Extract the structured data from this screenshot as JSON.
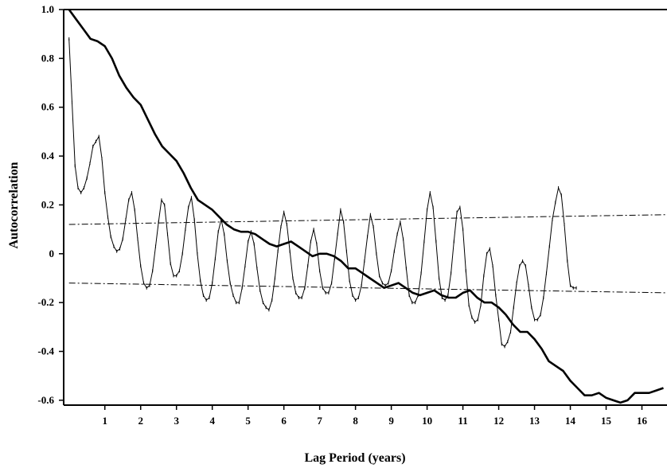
{
  "chart_data": {
    "type": "line",
    "title": "",
    "xlabel": "Lag Period (years)",
    "ylabel": "Autocorrelation",
    "xlim": [
      -0.15,
      16.7
    ],
    "ylim": [
      -0.62,
      1.0
    ],
    "grid": false,
    "x_ticks": [
      1,
      2,
      3,
      4,
      5,
      6,
      7,
      8,
      9,
      10,
      11,
      12,
      13,
      14,
      15,
      16
    ],
    "y_ticks": [
      {
        "value": 1.0,
        "label": "1.0"
      },
      {
        "value": 0.8,
        "label": "0.8"
      },
      {
        "value": 0.6,
        "label": "0.6"
      },
      {
        "value": 0.4,
        "label": "0.4"
      },
      {
        "value": 0.2,
        "label": "0.2"
      },
      {
        "value": 0.0,
        "label": "0"
      },
      {
        "value": -0.2,
        "label": "-0.2"
      },
      {
        "value": -0.4,
        "label": "-0.4"
      },
      {
        "value": -0.6,
        "label": "-0.6"
      }
    ],
    "series": [
      {
        "style": "thin-with-markers",
        "points": [
          [
            0.0,
            0.88
          ],
          [
            0.083,
            0.62
          ],
          [
            0.167,
            0.36
          ],
          [
            0.25,
            0.27
          ],
          [
            0.333,
            0.25
          ],
          [
            0.417,
            0.27
          ],
          [
            0.5,
            0.31
          ],
          [
            0.583,
            0.37
          ],
          [
            0.667,
            0.44
          ],
          [
            0.75,
            0.46
          ],
          [
            0.833,
            0.48
          ],
          [
            0.917,
            0.39
          ],
          [
            1.0,
            0.25
          ],
          [
            1.083,
            0.15
          ],
          [
            1.167,
            0.07
          ],
          [
            1.25,
            0.03
          ],
          [
            1.333,
            0.01
          ],
          [
            1.417,
            0.02
          ],
          [
            1.5,
            0.06
          ],
          [
            1.583,
            0.14
          ],
          [
            1.667,
            0.22
          ],
          [
            1.75,
            0.25
          ],
          [
            1.833,
            0.18
          ],
          [
            1.917,
            0.06
          ],
          [
            2.0,
            -0.05
          ],
          [
            2.083,
            -0.12
          ],
          [
            2.167,
            -0.14
          ],
          [
            2.25,
            -0.13
          ],
          [
            2.333,
            -0.07
          ],
          [
            2.417,
            0.03
          ],
          [
            2.5,
            0.13
          ],
          [
            2.583,
            0.22
          ],
          [
            2.667,
            0.2
          ],
          [
            2.75,
            0.08
          ],
          [
            2.833,
            -0.04
          ],
          [
            2.917,
            -0.09
          ],
          [
            3.0,
            -0.09
          ],
          [
            3.083,
            -0.07
          ],
          [
            3.167,
            0.0
          ],
          [
            3.25,
            0.1
          ],
          [
            3.333,
            0.19
          ],
          [
            3.417,
            0.23
          ],
          [
            3.5,
            0.14
          ],
          [
            3.583,
            0.0
          ],
          [
            3.667,
            -0.11
          ],
          [
            3.75,
            -0.17
          ],
          [
            3.833,
            -0.19
          ],
          [
            3.917,
            -0.18
          ],
          [
            4.0,
            -0.12
          ],
          [
            4.083,
            -0.02
          ],
          [
            4.167,
            0.09
          ],
          [
            4.25,
            0.14
          ],
          [
            4.333,
            0.08
          ],
          [
            4.417,
            -0.03
          ],
          [
            4.5,
            -0.12
          ],
          [
            4.583,
            -0.17
          ],
          [
            4.667,
            -0.2
          ],
          [
            4.75,
            -0.2
          ],
          [
            4.833,
            -0.14
          ],
          [
            4.917,
            -0.05
          ],
          [
            5.0,
            0.05
          ],
          [
            5.083,
            0.09
          ],
          [
            5.167,
            0.04
          ],
          [
            5.25,
            -0.06
          ],
          [
            5.333,
            -0.15
          ],
          [
            5.417,
            -0.2
          ],
          [
            5.5,
            -0.22
          ],
          [
            5.583,
            -0.23
          ],
          [
            5.667,
            -0.19
          ],
          [
            5.75,
            -0.1
          ],
          [
            5.833,
            0.01
          ],
          [
            5.917,
            0.11
          ],
          [
            6.0,
            0.17
          ],
          [
            6.083,
            0.12
          ],
          [
            6.167,
            0.01
          ],
          [
            6.25,
            -0.1
          ],
          [
            6.333,
            -0.16
          ],
          [
            6.417,
            -0.18
          ],
          [
            6.5,
            -0.18
          ],
          [
            6.583,
            -0.14
          ],
          [
            6.667,
            -0.05
          ],
          [
            6.75,
            0.05
          ],
          [
            6.833,
            0.1
          ],
          [
            6.917,
            0.04
          ],
          [
            7.0,
            -0.07
          ],
          [
            7.083,
            -0.14
          ],
          [
            7.167,
            -0.16
          ],
          [
            7.25,
            -0.16
          ],
          [
            7.333,
            -0.12
          ],
          [
            7.417,
            -0.02
          ],
          [
            7.5,
            0.08
          ],
          [
            7.583,
            0.18
          ],
          [
            7.667,
            0.13
          ],
          [
            7.75,
            0.01
          ],
          [
            7.833,
            -0.11
          ],
          [
            7.917,
            -0.17
          ],
          [
            8.0,
            -0.19
          ],
          [
            8.083,
            -0.18
          ],
          [
            8.167,
            -0.13
          ],
          [
            8.25,
            -0.03
          ],
          [
            8.333,
            0.07
          ],
          [
            8.417,
            0.16
          ],
          [
            8.5,
            0.11
          ],
          [
            8.583,
            0.0
          ],
          [
            8.667,
            -0.09
          ],
          [
            8.75,
            -0.12
          ],
          [
            8.833,
            -0.13
          ],
          [
            8.917,
            -0.12
          ],
          [
            9.0,
            -0.07
          ],
          [
            9.083,
            0.01
          ],
          [
            9.167,
            0.08
          ],
          [
            9.25,
            0.13
          ],
          [
            9.333,
            0.06
          ],
          [
            9.417,
            -0.06
          ],
          [
            9.5,
            -0.17
          ],
          [
            9.583,
            -0.2
          ],
          [
            9.667,
            -0.2
          ],
          [
            9.75,
            -0.17
          ],
          [
            9.833,
            -0.08
          ],
          [
            9.917,
            0.05
          ],
          [
            10.0,
            0.18
          ],
          [
            10.083,
            0.25
          ],
          [
            10.167,
            0.19
          ],
          [
            10.25,
            0.05
          ],
          [
            10.333,
            -0.1
          ],
          [
            10.417,
            -0.18
          ],
          [
            10.5,
            -0.19
          ],
          [
            10.583,
            -0.17
          ],
          [
            10.667,
            -0.08
          ],
          [
            10.75,
            0.05
          ],
          [
            10.833,
            0.17
          ],
          [
            10.917,
            0.19
          ],
          [
            11.0,
            0.1
          ],
          [
            11.083,
            -0.07
          ],
          [
            11.167,
            -0.21
          ],
          [
            11.25,
            -0.26
          ],
          [
            11.333,
            -0.28
          ],
          [
            11.417,
            -0.27
          ],
          [
            11.5,
            -0.21
          ],
          [
            11.583,
            -0.09
          ],
          [
            11.667,
            0.0
          ],
          [
            11.75,
            0.02
          ],
          [
            11.833,
            -0.05
          ],
          [
            11.917,
            -0.17
          ],
          [
            12.0,
            -0.27
          ],
          [
            12.083,
            -0.37
          ],
          [
            12.167,
            -0.38
          ],
          [
            12.25,
            -0.36
          ],
          [
            12.333,
            -0.32
          ],
          [
            12.417,
            -0.22
          ],
          [
            12.5,
            -0.12
          ],
          [
            12.583,
            -0.05
          ],
          [
            12.667,
            -0.03
          ],
          [
            12.75,
            -0.05
          ],
          [
            12.833,
            -0.13
          ],
          [
            12.917,
            -0.22
          ],
          [
            13.0,
            -0.27
          ],
          [
            13.083,
            -0.27
          ],
          [
            13.167,
            -0.25
          ],
          [
            13.25,
            -0.18
          ],
          [
            13.333,
            -0.08
          ],
          [
            13.417,
            0.03
          ],
          [
            13.5,
            0.14
          ],
          [
            13.583,
            0.21
          ],
          [
            13.667,
            0.27
          ],
          [
            13.75,
            0.24
          ],
          [
            13.833,
            0.12
          ],
          [
            13.917,
            -0.03
          ],
          [
            14.0,
            -0.13
          ],
          [
            14.083,
            -0.14
          ],
          [
            14.167,
            -0.14
          ]
        ]
      },
      {
        "style": "thick",
        "points": [
          [
            0.0,
            1.0
          ],
          [
            0.2,
            0.96
          ],
          [
            0.4,
            0.92
          ],
          [
            0.6,
            0.88
          ],
          [
            0.8,
            0.87
          ],
          [
            1.0,
            0.85
          ],
          [
            1.2,
            0.8
          ],
          [
            1.4,
            0.73
          ],
          [
            1.6,
            0.68
          ],
          [
            1.8,
            0.64
          ],
          [
            2.0,
            0.61
          ],
          [
            2.2,
            0.55
          ],
          [
            2.4,
            0.49
          ],
          [
            2.6,
            0.44
          ],
          [
            2.8,
            0.41
          ],
          [
            3.0,
            0.38
          ],
          [
            3.2,
            0.33
          ],
          [
            3.4,
            0.27
          ],
          [
            3.6,
            0.22
          ],
          [
            3.8,
            0.2
          ],
          [
            4.0,
            0.18
          ],
          [
            4.2,
            0.15
          ],
          [
            4.4,
            0.12
          ],
          [
            4.6,
            0.1
          ],
          [
            4.8,
            0.09
          ],
          [
            5.0,
            0.09
          ],
          [
            5.2,
            0.08
          ],
          [
            5.4,
            0.06
          ],
          [
            5.6,
            0.04
          ],
          [
            5.8,
            0.03
          ],
          [
            6.0,
            0.04
          ],
          [
            6.2,
            0.05
          ],
          [
            6.4,
            0.03
          ],
          [
            6.6,
            0.01
          ],
          [
            6.8,
            -0.01
          ],
          [
            7.0,
            0.0
          ],
          [
            7.2,
            0.0
          ],
          [
            7.4,
            -0.01
          ],
          [
            7.6,
            -0.03
          ],
          [
            7.8,
            -0.06
          ],
          [
            8.0,
            -0.06
          ],
          [
            8.2,
            -0.08
          ],
          [
            8.4,
            -0.1
          ],
          [
            8.6,
            -0.12
          ],
          [
            8.8,
            -0.14
          ],
          [
            9.0,
            -0.13
          ],
          [
            9.2,
            -0.12
          ],
          [
            9.4,
            -0.14
          ],
          [
            9.6,
            -0.16
          ],
          [
            9.8,
            -0.17
          ],
          [
            10.0,
            -0.16
          ],
          [
            10.2,
            -0.15
          ],
          [
            10.4,
            -0.17
          ],
          [
            10.6,
            -0.18
          ],
          [
            10.8,
            -0.18
          ],
          [
            11.0,
            -0.16
          ],
          [
            11.2,
            -0.15
          ],
          [
            11.4,
            -0.18
          ],
          [
            11.6,
            -0.2
          ],
          [
            11.8,
            -0.2
          ],
          [
            12.0,
            -0.22
          ],
          [
            12.2,
            -0.25
          ],
          [
            12.4,
            -0.29
          ],
          [
            12.6,
            -0.32
          ],
          [
            12.8,
            -0.32
          ],
          [
            13.0,
            -0.35
          ],
          [
            13.2,
            -0.39
          ],
          [
            13.4,
            -0.44
          ],
          [
            13.6,
            -0.46
          ],
          [
            13.8,
            -0.48
          ],
          [
            14.0,
            -0.52
          ],
          [
            14.2,
            -0.55
          ],
          [
            14.4,
            -0.58
          ],
          [
            14.6,
            -0.58
          ],
          [
            14.8,
            -0.57
          ],
          [
            15.0,
            -0.59
          ],
          [
            15.2,
            -0.6
          ],
          [
            15.4,
            -0.61
          ],
          [
            15.6,
            -0.6
          ],
          [
            15.8,
            -0.57
          ],
          [
            16.0,
            -0.57
          ],
          [
            16.2,
            -0.57
          ],
          [
            16.4,
            -0.56
          ],
          [
            16.6,
            -0.55
          ]
        ]
      },
      {
        "style": "dash-dot",
        "points": [
          [
            0.0,
            0.12
          ],
          [
            16.7,
            0.16
          ]
        ]
      },
      {
        "style": "dash-dot",
        "points": [
          [
            0.0,
            -0.12
          ],
          [
            16.7,
            -0.16
          ]
        ]
      }
    ]
  }
}
